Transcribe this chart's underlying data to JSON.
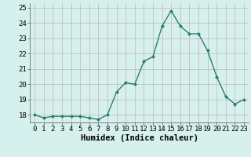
{
  "x": [
    0,
    1,
    2,
    3,
    4,
    5,
    6,
    7,
    8,
    9,
    10,
    11,
    12,
    13,
    14,
    15,
    16,
    17,
    18,
    19,
    20,
    21,
    22,
    23
  ],
  "y": [
    18.0,
    17.8,
    17.9,
    17.9,
    17.9,
    17.9,
    17.8,
    17.7,
    18.0,
    19.5,
    20.1,
    20.0,
    21.5,
    21.8,
    23.8,
    24.8,
    23.8,
    23.3,
    23.3,
    22.2,
    20.5,
    19.2,
    18.7,
    19.0
  ],
  "line_color": "#2e7d6e",
  "marker": "D",
  "marker_size": 2,
  "bg_color": "#d6f0ee",
  "grid_color": "#c4b4b4",
  "xlabel": "Humidex (Indice chaleur)",
  "ylim": [
    17.5,
    25.3
  ],
  "yticks": [
    18,
    19,
    20,
    21,
    22,
    23,
    24,
    25
  ],
  "xticks": [
    0,
    1,
    2,
    3,
    4,
    5,
    6,
    7,
    8,
    9,
    10,
    11,
    12,
    13,
    14,
    15,
    16,
    17,
    18,
    19,
    20,
    21,
    22,
    23
  ],
  "xlabel_fontsize": 7.5,
  "tick_fontsize": 6.5,
  "line_width": 1.0
}
